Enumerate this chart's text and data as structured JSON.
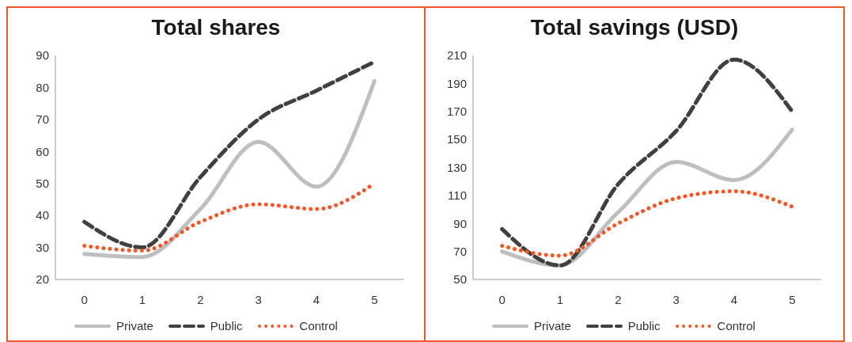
{
  "chart_data": [
    {
      "type": "line",
      "title": "Total shares",
      "x": [
        0,
        1,
        2,
        3,
        4,
        5
      ],
      "xlim": [
        -0.5,
        5.5
      ],
      "xticks": [
        0,
        1,
        2,
        3,
        4,
        5
      ],
      "ylim": [
        20,
        90
      ],
      "yticks": [
        20,
        30,
        40,
        50,
        60,
        70,
        80,
        90
      ],
      "grid": false,
      "legend": "bottom",
      "marker": "none",
      "series": [
        {
          "name": "Private",
          "color": "#bfbfbf",
          "line_style": "solid",
          "values": [
            28,
            27,
            42,
            63,
            49,
            82
          ]
        },
        {
          "name": "Public",
          "color": "#404040",
          "line_style": "dashed",
          "values": [
            38,
            30,
            52,
            70,
            79,
            88
          ]
        },
        {
          "name": "Control",
          "color": "#f0582a",
          "line_style": "dotted",
          "values": [
            30.5,
            29,
            38,
            43.5,
            42,
            50
          ]
        }
      ]
    },
    {
      "type": "line",
      "title": "Total savings (USD)",
      "x": [
        0,
        1,
        2,
        3,
        4,
        5
      ],
      "xlim": [
        -0.5,
        5.5
      ],
      "xticks": [
        0,
        1,
        2,
        3,
        4,
        5
      ],
      "ylim": [
        50,
        210
      ],
      "yticks": [
        50,
        70,
        90,
        110,
        130,
        150,
        170,
        190,
        210
      ],
      "grid": false,
      "legend": "bottom",
      "marker": "none",
      "series": [
        {
          "name": "Private",
          "color": "#bfbfbf",
          "line_style": "solid",
          "values": [
            70,
            60,
            98,
            134,
            121,
            157
          ]
        },
        {
          "name": "Public",
          "color": "#404040",
          "line_style": "dashed",
          "values": [
            86,
            60,
            118,
            156,
            207,
            170
          ]
        },
        {
          "name": "Control",
          "color": "#f0582a",
          "line_style": "dotted",
          "values": [
            74,
            67,
            90,
            108,
            113,
            102
          ]
        }
      ]
    }
  ]
}
